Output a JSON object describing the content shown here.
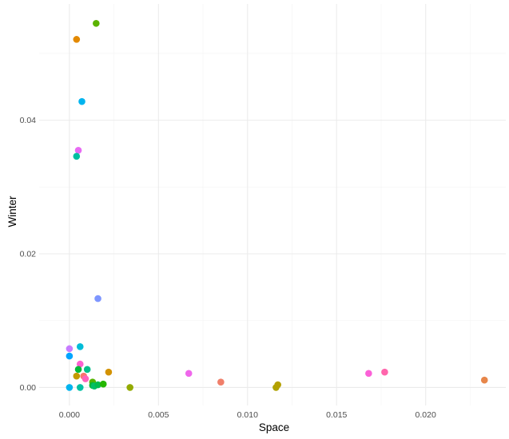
{
  "chart_data": {
    "type": "scatter",
    "xlabel": "Space",
    "ylabel": "Winter",
    "xlim": [
      -0.0017,
      0.0245
    ],
    "ylim": [
      -0.0027,
      0.0574
    ],
    "x_ticks": [
      0.0,
      0.005,
      0.01,
      0.015,
      0.02
    ],
    "x_tick_labels": [
      "0.000",
      "0.005",
      "0.010",
      "0.015",
      "0.020"
    ],
    "y_ticks": [
      0.0,
      0.02,
      0.04
    ],
    "y_tick_labels": [
      "0.00",
      "0.02",
      "0.04"
    ],
    "grid": true,
    "legend": "none",
    "points": [
      {
        "x": 0.0015,
        "y": 0.0545,
        "color": "#5bb300"
      },
      {
        "x": 0.0004,
        "y": 0.0521,
        "color": "#e38900"
      },
      {
        "x": 0.0007,
        "y": 0.0428,
        "color": "#00b4ef"
      },
      {
        "x": 0.0005,
        "y": 0.0355,
        "color": "#e76bf3"
      },
      {
        "x": 0.0004,
        "y": 0.0346,
        "color": "#00bfa0"
      },
      {
        "x": 0.0016,
        "y": 0.0133,
        "color": "#7e96ff"
      },
      {
        "x": 0.0,
        "y": 0.0058,
        "color": "#c77cff"
      },
      {
        "x": 0.0006,
        "y": 0.0061,
        "color": "#00bcd8"
      },
      {
        "x": 0.0,
        "y": 0.0047,
        "color": "#00a5ff"
      },
      {
        "x": 0.0006,
        "y": 0.0035,
        "color": "#fd61d1"
      },
      {
        "x": 0.0005,
        "y": 0.0027,
        "color": "#00ba38"
      },
      {
        "x": 0.001,
        "y": 0.0027,
        "color": "#00c08b"
      },
      {
        "x": 0.0004,
        "y": 0.0017,
        "color": "#c49a00"
      },
      {
        "x": 0.0008,
        "y": 0.0017,
        "color": "#f8766d"
      },
      {
        "x": 0.0009,
        "y": 0.0013,
        "color": "#ff62bc"
      },
      {
        "x": 0.0013,
        "y": 0.0008,
        "color": "#53b400"
      },
      {
        "x": 0.0,
        "y": 0.0,
        "color": "#00b4ef"
      },
      {
        "x": 0.0006,
        "y": 0.0,
        "color": "#00c1a3"
      },
      {
        "x": 0.0013,
        "y": 0.0003,
        "color": "#00ba38"
      },
      {
        "x": 0.0014,
        "y": 0.0002,
        "color": "#00be67"
      },
      {
        "x": 0.0016,
        "y": 0.0004,
        "color": "#00bb4e"
      },
      {
        "x": 0.0019,
        "y": 0.0005,
        "color": "#24b700"
      },
      {
        "x": 0.0022,
        "y": 0.0023,
        "color": "#d39200"
      },
      {
        "x": 0.0034,
        "y": 0.0,
        "color": "#93aa00"
      },
      {
        "x": 0.0067,
        "y": 0.0021,
        "color": "#ef67eb"
      },
      {
        "x": 0.0085,
        "y": 0.0008,
        "color": "#f07f6a"
      },
      {
        "x": 0.0116,
        "y": 0.0,
        "color": "#aea200"
      },
      {
        "x": 0.0117,
        "y": 0.0004,
        "color": "#b4a000"
      },
      {
        "x": 0.0168,
        "y": 0.0021,
        "color": "#fb61d7"
      },
      {
        "x": 0.0177,
        "y": 0.0023,
        "color": "#ff65ac"
      },
      {
        "x": 0.0233,
        "y": 0.0011,
        "color": "#e7864a"
      }
    ]
  }
}
